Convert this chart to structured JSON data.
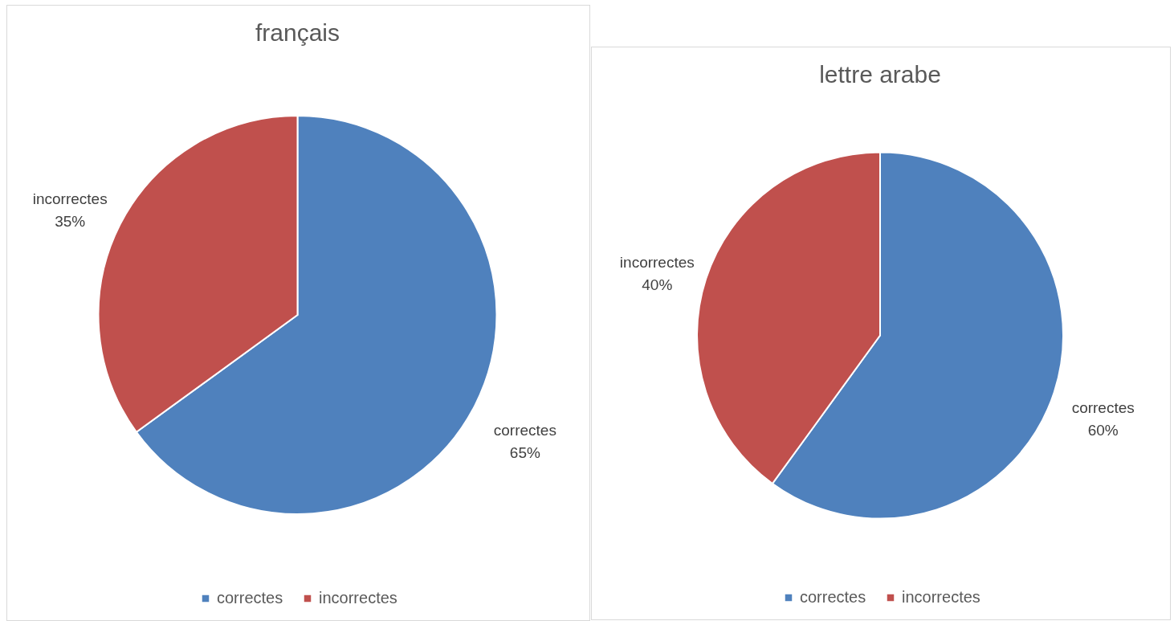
{
  "chart_data": [
    {
      "type": "pie",
      "title": "français",
      "categories": [
        "correctes",
        "incorrectes"
      ],
      "values": [
        65,
        35
      ],
      "colors": [
        "#4f81bd",
        "#c0504d"
      ],
      "value_labels": [
        "65%",
        "35%"
      ],
      "legend": "bottom"
    },
    {
      "type": "pie",
      "title": "lettre arabe",
      "categories": [
        "correctes",
        "incorrectes"
      ],
      "values": [
        60,
        40
      ],
      "colors": [
        "#4f81bd",
        "#c0504d"
      ],
      "value_labels": [
        "60%",
        "40%"
      ],
      "legend": "bottom"
    }
  ]
}
